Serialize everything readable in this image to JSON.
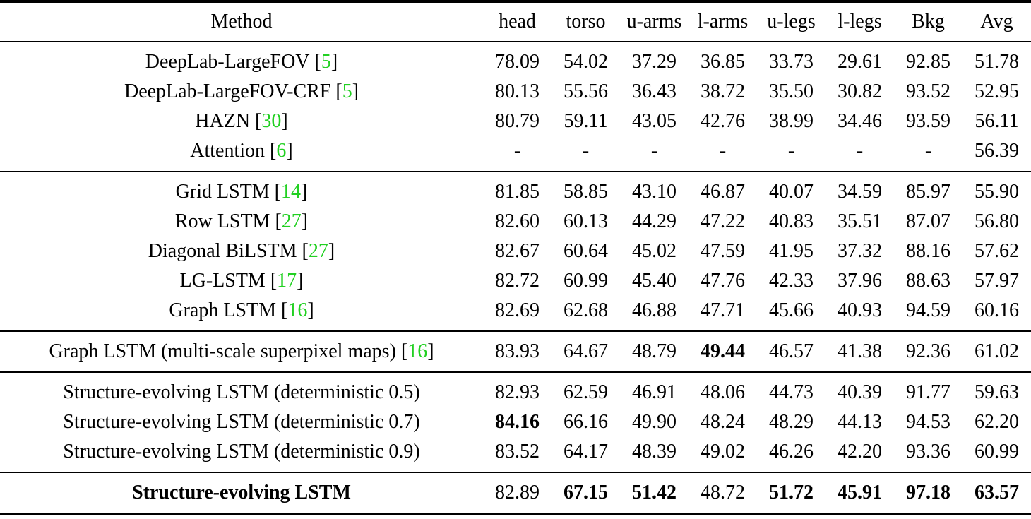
{
  "page": {
    "background": "#ffffff",
    "text_color": "#000000",
    "citation_green": "#22d022",
    "rule_color": "#000000"
  },
  "table": {
    "columns": [
      "Method",
      "head",
      "torso",
      "u-arms",
      "l-arms",
      "u-legs",
      "l-legs",
      "Bkg",
      "Avg"
    ],
    "bracket_open": "[",
    "bracket_close": "]",
    "groups": [
      {
        "rows": [
          {
            "method": "DeepLab-LargeFOV",
            "cite": "5",
            "values": [
              "78.09",
              "54.02",
              "37.29",
              "36.85",
              "33.73",
              "29.61",
              "92.85",
              "51.78"
            ]
          },
          {
            "method": "DeepLab-LargeFOV-CRF",
            "cite": "5",
            "values": [
              "80.13",
              "55.56",
              "36.43",
              "38.72",
              "35.50",
              "30.82",
              "93.52",
              "52.95"
            ]
          },
          {
            "method": "HAZN",
            "cite": "30",
            "values": [
              "80.79",
              "59.11",
              "43.05",
              "42.76",
              "38.99",
              "34.46",
              "93.59",
              "56.11"
            ]
          },
          {
            "method": "Attention",
            "cite": "6",
            "values": [
              "-",
              "-",
              "-",
              "-",
              "-",
              "-",
              "-",
              "56.39"
            ]
          }
        ]
      },
      {
        "rows": [
          {
            "method": "Grid LSTM",
            "cite": "14",
            "values": [
              "81.85",
              "58.85",
              "43.10",
              "46.87",
              "40.07",
              "34.59",
              "85.97",
              "55.90"
            ]
          },
          {
            "method": "Row LSTM",
            "cite": "27",
            "values": [
              "82.60",
              "60.13",
              "44.29",
              "47.22",
              "40.83",
              "35.51",
              "87.07",
              "56.80"
            ]
          },
          {
            "method": "Diagonal BiLSTM",
            "cite": "27",
            "values": [
              "82.67",
              "60.64",
              "45.02",
              "47.59",
              "41.95",
              "37.32",
              "88.16",
              "57.62"
            ]
          },
          {
            "method": "LG-LSTM",
            "cite": "17",
            "values": [
              "82.72",
              "60.99",
              "45.40",
              "47.76",
              "42.33",
              "37.96",
              "88.63",
              "57.97"
            ]
          },
          {
            "method": "Graph LSTM",
            "cite": "16",
            "values": [
              "82.69",
              "62.68",
              "46.88",
              "47.71",
              "45.66",
              "40.93",
              "94.59",
              "60.16"
            ]
          }
        ]
      },
      {
        "rows": [
          {
            "method": "Graph LSTM (multi-scale superpixel maps)",
            "cite": "16",
            "values": [
              "83.93",
              "64.67",
              "48.79",
              "49.44",
              "46.57",
              "41.38",
              "92.36",
              "61.02"
            ],
            "bold_value_indices": [
              3
            ]
          }
        ]
      },
      {
        "rows": [
          {
            "method": "Structure-evolving LSTM (deterministic 0.5)",
            "values": [
              "82.93",
              "62.59",
              "46.91",
              "48.06",
              "44.73",
              "40.39",
              "91.77",
              "59.63"
            ]
          },
          {
            "method": "Structure-evolving LSTM (deterministic 0.7)",
            "values": [
              "84.16",
              "66.16",
              "49.90",
              "48.24",
              "48.29",
              "44.13",
              "94.53",
              "62.20"
            ],
            "bold_value_indices": [
              0
            ]
          },
          {
            "method": "Structure-evolving LSTM (deterministic 0.9)",
            "values": [
              "83.52",
              "64.17",
              "48.39",
              "49.02",
              "46.26",
              "42.20",
              "93.36",
              "60.99"
            ]
          }
        ]
      },
      {
        "rows": [
          {
            "method": "Structure-evolving LSTM",
            "method_bold": true,
            "values": [
              "82.89",
              "67.15",
              "51.42",
              "48.72",
              "51.72",
              "45.91",
              "97.18",
              "63.57"
            ],
            "bold_value_indices": [
              1,
              2,
              4,
              5,
              6,
              7
            ]
          }
        ]
      }
    ]
  }
}
